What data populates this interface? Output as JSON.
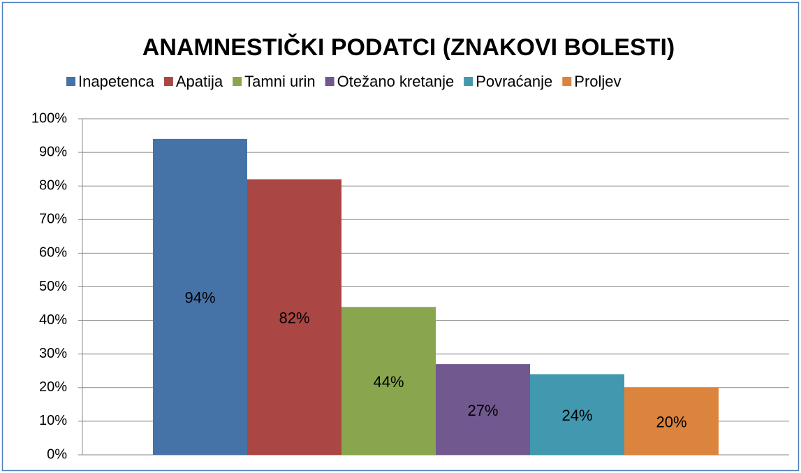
{
  "chart_data": {
    "type": "bar",
    "title": "ANAMNESTIČKI PODATCI (ZNAKOVI BOLESTI)",
    "categories": [
      null
    ],
    "series": [
      {
        "name": "Inapetenca",
        "color": "#4572a7",
        "values": [
          94
        ],
        "value_labels": [
          "94%"
        ]
      },
      {
        "name": "Apatija",
        "color": "#aa4643",
        "values": [
          82
        ],
        "value_labels": [
          "82%"
        ]
      },
      {
        "name": "Tamni urin",
        "color": "#89a54e",
        "values": [
          44
        ],
        "value_labels": [
          "44%"
        ]
      },
      {
        "name": "Otežano kretanje",
        "color": "#71588f",
        "values": [
          27
        ],
        "value_labels": [
          "27%"
        ]
      },
      {
        "name": "Povraćanje",
        "color": "#4198af",
        "values": [
          24
        ],
        "value_labels": [
          "24%"
        ]
      },
      {
        "name": "Proljev",
        "color": "#db843d",
        "values": [
          20
        ],
        "value_labels": [
          "20%"
        ]
      }
    ],
    "ylim": [
      0,
      100
    ],
    "yticks": [
      {
        "value": 0,
        "label": "0%"
      },
      {
        "value": 10,
        "label": "10%"
      },
      {
        "value": 20,
        "label": "20%"
      },
      {
        "value": 30,
        "label": "30%"
      },
      {
        "value": 40,
        "label": "40%"
      },
      {
        "value": 50,
        "label": "50%"
      },
      {
        "value": 60,
        "label": "60%"
      },
      {
        "value": 70,
        "label": "70%"
      },
      {
        "value": 80,
        "label": "80%"
      },
      {
        "value": 90,
        "label": "90%"
      },
      {
        "value": 100,
        "label": "100%"
      }
    ],
    "grid": true,
    "legend": "top"
  }
}
